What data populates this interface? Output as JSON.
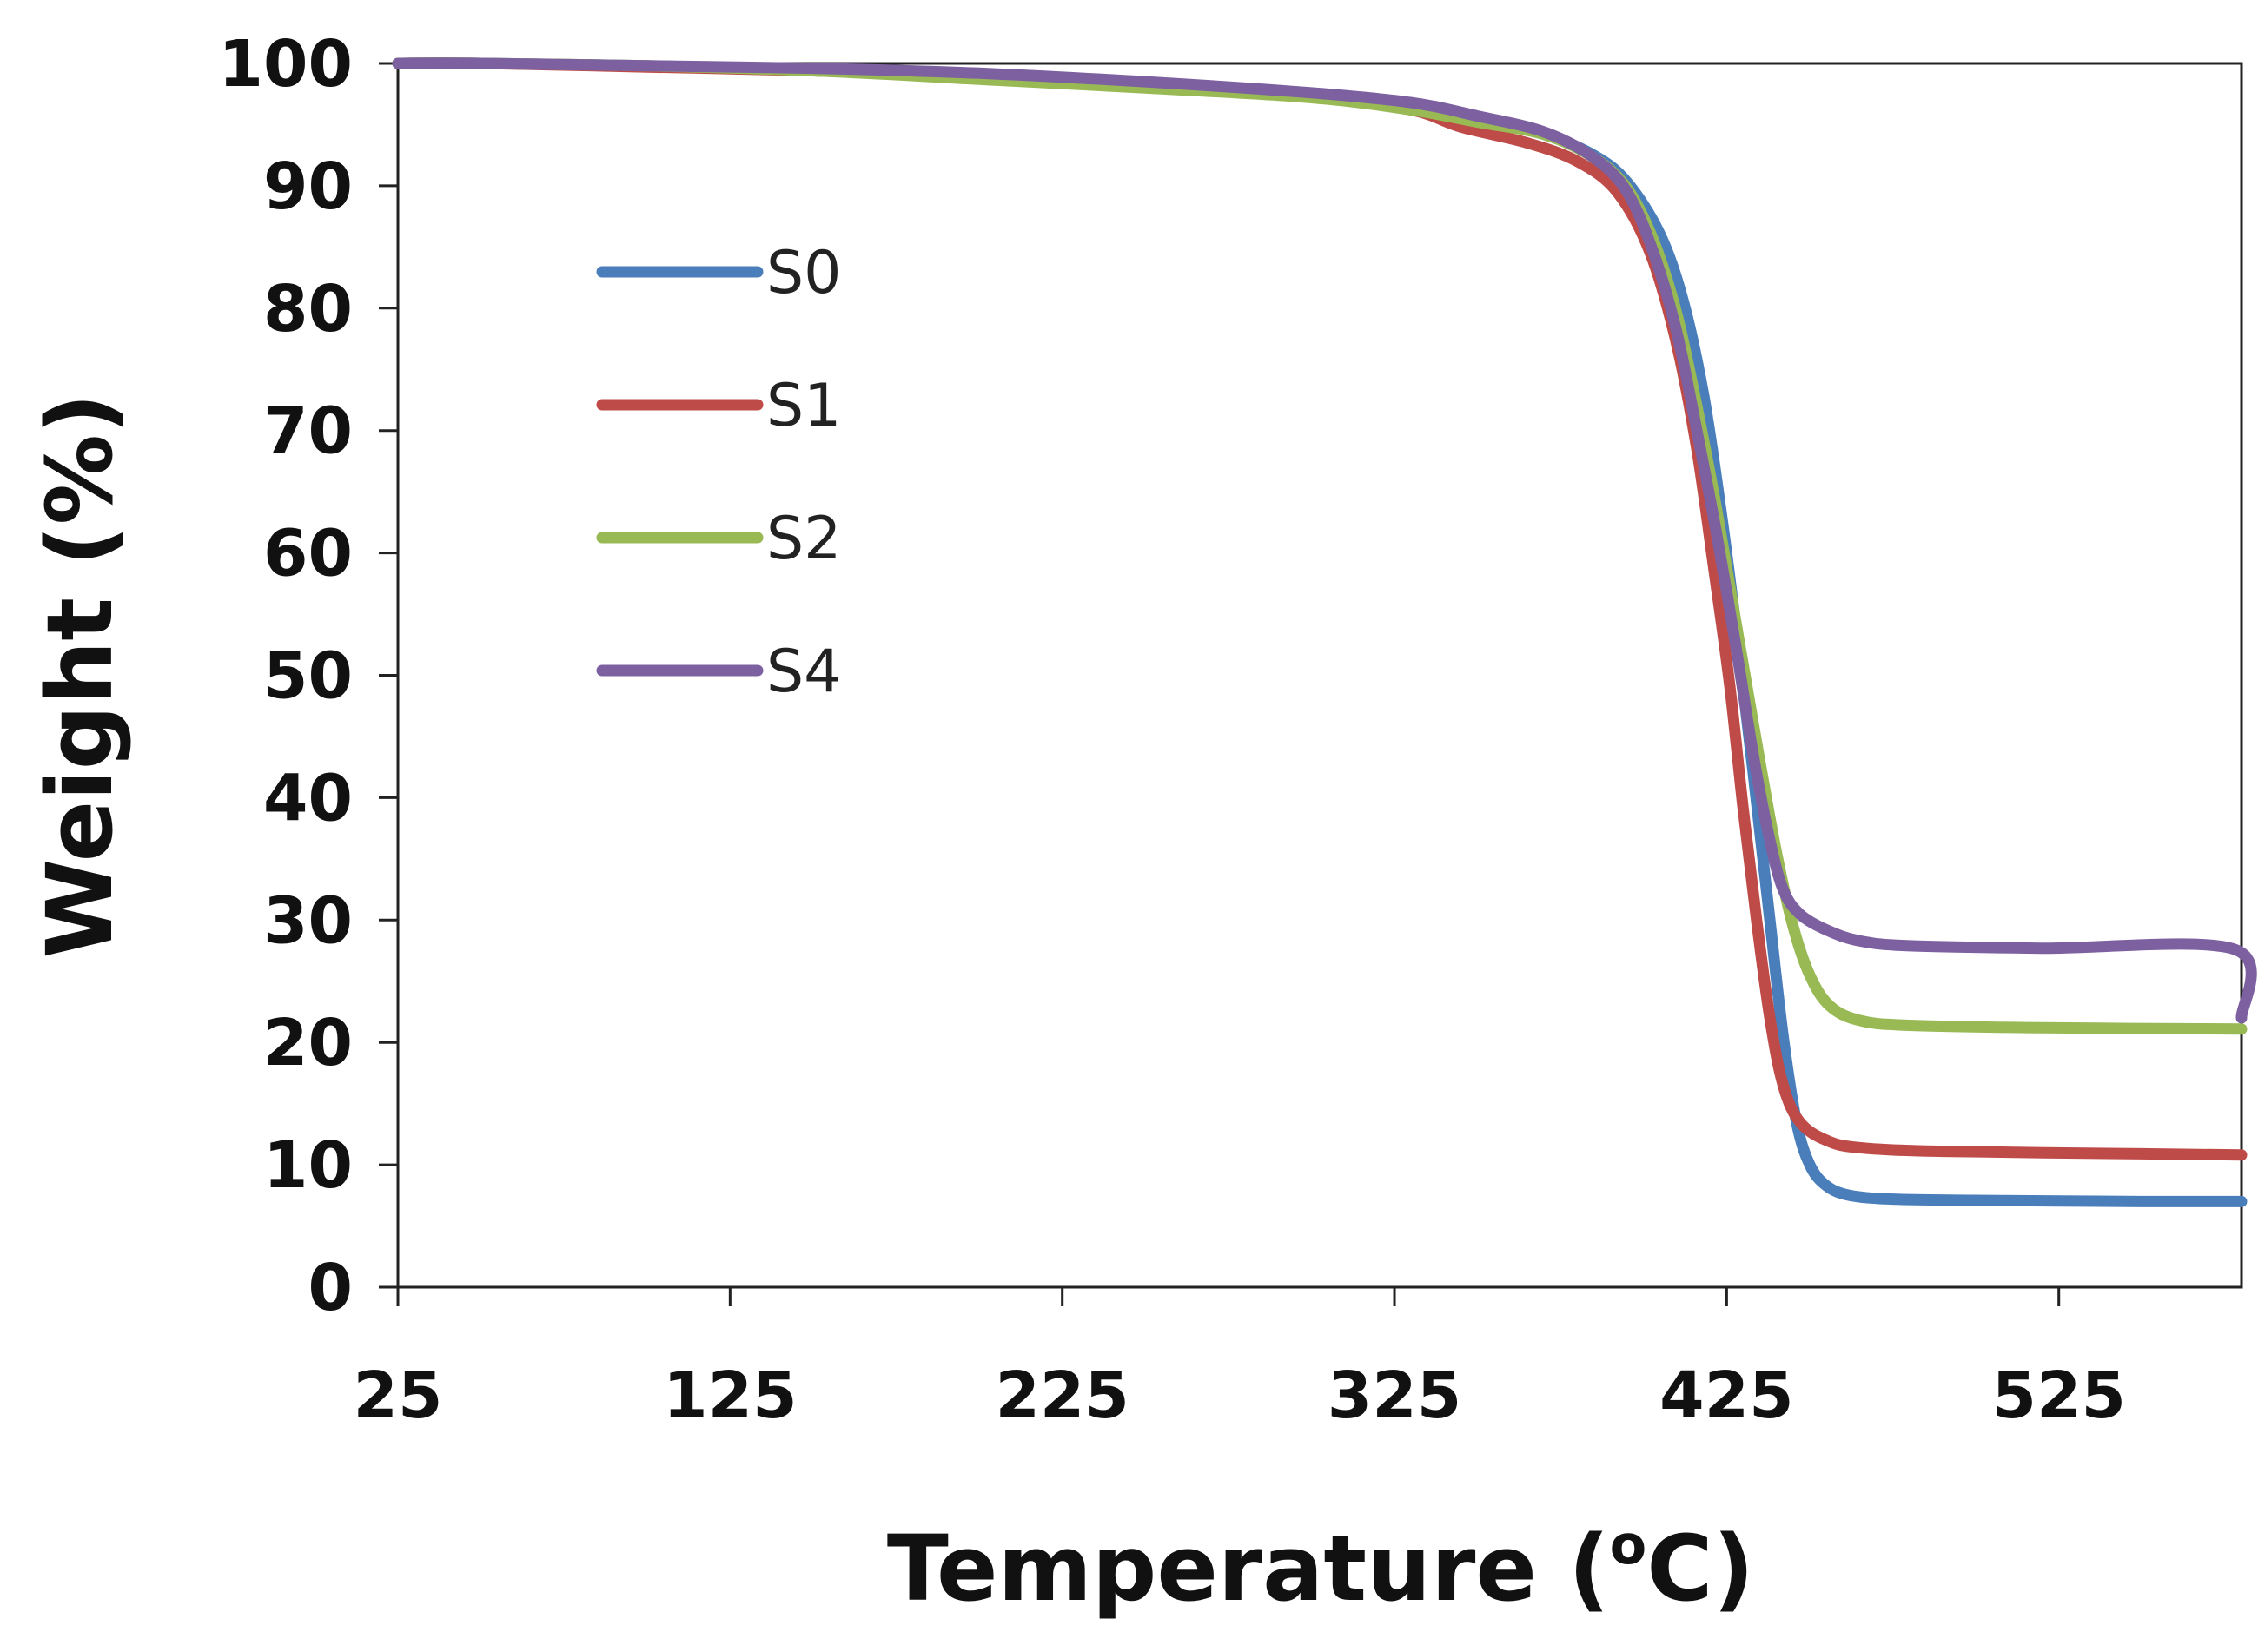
{
  "chart_data": {
    "type": "line",
    "title": "",
    "xlabel": "Temperature (",
    "xlabel_sup": "o",
    "xlabel_suffix": "C)",
    "ylabel": "Weight (%)",
    "xlim": [
      25,
      580
    ],
    "ylim": [
      0,
      100
    ],
    "xticks": [
      25,
      125,
      225,
      325,
      425,
      525
    ],
    "yticks": [
      0,
      10,
      20,
      30,
      40,
      50,
      60,
      70,
      80,
      90,
      100
    ],
    "grid": false,
    "legend_position": "top-left",
    "series": [
      {
        "name": "S0",
        "color": "#4A7EBB",
        "points": [
          [
            25,
            100
          ],
          [
            50,
            100
          ],
          [
            100,
            99.8
          ],
          [
            150,
            99.5
          ],
          [
            200,
            99.0
          ],
          [
            250,
            98.2
          ],
          [
            300,
            97.3
          ],
          [
            330,
            96.6
          ],
          [
            350,
            95.5
          ],
          [
            370,
            94.2
          ],
          [
            385,
            92.5
          ],
          [
            395,
            90.3
          ],
          [
            405,
            86.0
          ],
          [
            412,
            80.5
          ],
          [
            418,
            73.0
          ],
          [
            423,
            64.0
          ],
          [
            428,
            53.5
          ],
          [
            433,
            42.0
          ],
          [
            438,
            30.0
          ],
          [
            442,
            20.5
          ],
          [
            446,
            13.5
          ],
          [
            450,
            10.0
          ],
          [
            455,
            8.3
          ],
          [
            462,
            7.5
          ],
          [
            475,
            7.2
          ],
          [
            500,
            7.1
          ],
          [
            550,
            7.0
          ],
          [
            580,
            7.0
          ]
        ]
      },
      {
        "name": "S1",
        "color": "#BE4B48",
        "points": [
          [
            25,
            100
          ],
          [
            50,
            100
          ],
          [
            100,
            99.7
          ],
          [
            150,
            99.4
          ],
          [
            200,
            98.9
          ],
          [
            250,
            98.2
          ],
          [
            300,
            97.3
          ],
          [
            330,
            96.2
          ],
          [
            345,
            94.8
          ],
          [
            365,
            93.5
          ],
          [
            380,
            92.0
          ],
          [
            392,
            89.5
          ],
          [
            402,
            84.5
          ],
          [
            410,
            77.0
          ],
          [
            416,
            68.5
          ],
          [
            421,
            59.0
          ],
          [
            426,
            49.0
          ],
          [
            430,
            39.0
          ],
          [
            434,
            30.0
          ],
          [
            438,
            22.0
          ],
          [
            442,
            16.5
          ],
          [
            447,
            13.5
          ],
          [
            455,
            12.0
          ],
          [
            465,
            11.4
          ],
          [
            490,
            11.1
          ],
          [
            550,
            10.9
          ],
          [
            580,
            10.8
          ]
        ]
      },
      {
        "name": "S2",
        "color": "#98B954",
        "points": [
          [
            25,
            100
          ],
          [
            50,
            100
          ],
          [
            100,
            99.8
          ],
          [
            150,
            99.4
          ],
          [
            200,
            98.7
          ],
          [
            250,
            98.0
          ],
          [
            300,
            97.2
          ],
          [
            330,
            96.2
          ],
          [
            350,
            95.2
          ],
          [
            370,
            94.2
          ],
          [
            385,
            92.3
          ],
          [
            395,
            89.8
          ],
          [
            403,
            85.5
          ],
          [
            410,
            79.5
          ],
          [
            416,
            72.0
          ],
          [
            422,
            63.5
          ],
          [
            428,
            54.0
          ],
          [
            434,
            44.5
          ],
          [
            440,
            35.5
          ],
          [
            445,
            29.5
          ],
          [
            450,
            25.5
          ],
          [
            456,
            23.0
          ],
          [
            465,
            21.8
          ],
          [
            480,
            21.4
          ],
          [
            520,
            21.2
          ],
          [
            580,
            21.1
          ]
        ]
      },
      {
        "name": "S4",
        "color": "#7D60A0",
        "points": [
          [
            25,
            100
          ],
          [
            50,
            100
          ],
          [
            100,
            99.8
          ],
          [
            150,
            99.6
          ],
          [
            200,
            99.2
          ],
          [
            250,
            98.5
          ],
          [
            300,
            97.6
          ],
          [
            330,
            96.8
          ],
          [
            350,
            95.7
          ],
          [
            370,
            94.4
          ],
          [
            385,
            92.3
          ],
          [
            395,
            89.5
          ],
          [
            403,
            84.5
          ],
          [
            410,
            78.0
          ],
          [
            416,
            70.0
          ],
          [
            422,
            61.5
          ],
          [
            428,
            52.0
          ],
          [
            433,
            43.5
          ],
          [
            438,
            36.5
          ],
          [
            442,
            32.5
          ],
          [
            447,
            30.5
          ],
          [
            455,
            29.2
          ],
          [
            465,
            28.3
          ],
          [
            480,
            27.9
          ],
          [
            520,
            27.7
          ],
          [
            578,
            27.6
          ],
          [
            580,
            22.0
          ]
        ]
      }
    ]
  }
}
